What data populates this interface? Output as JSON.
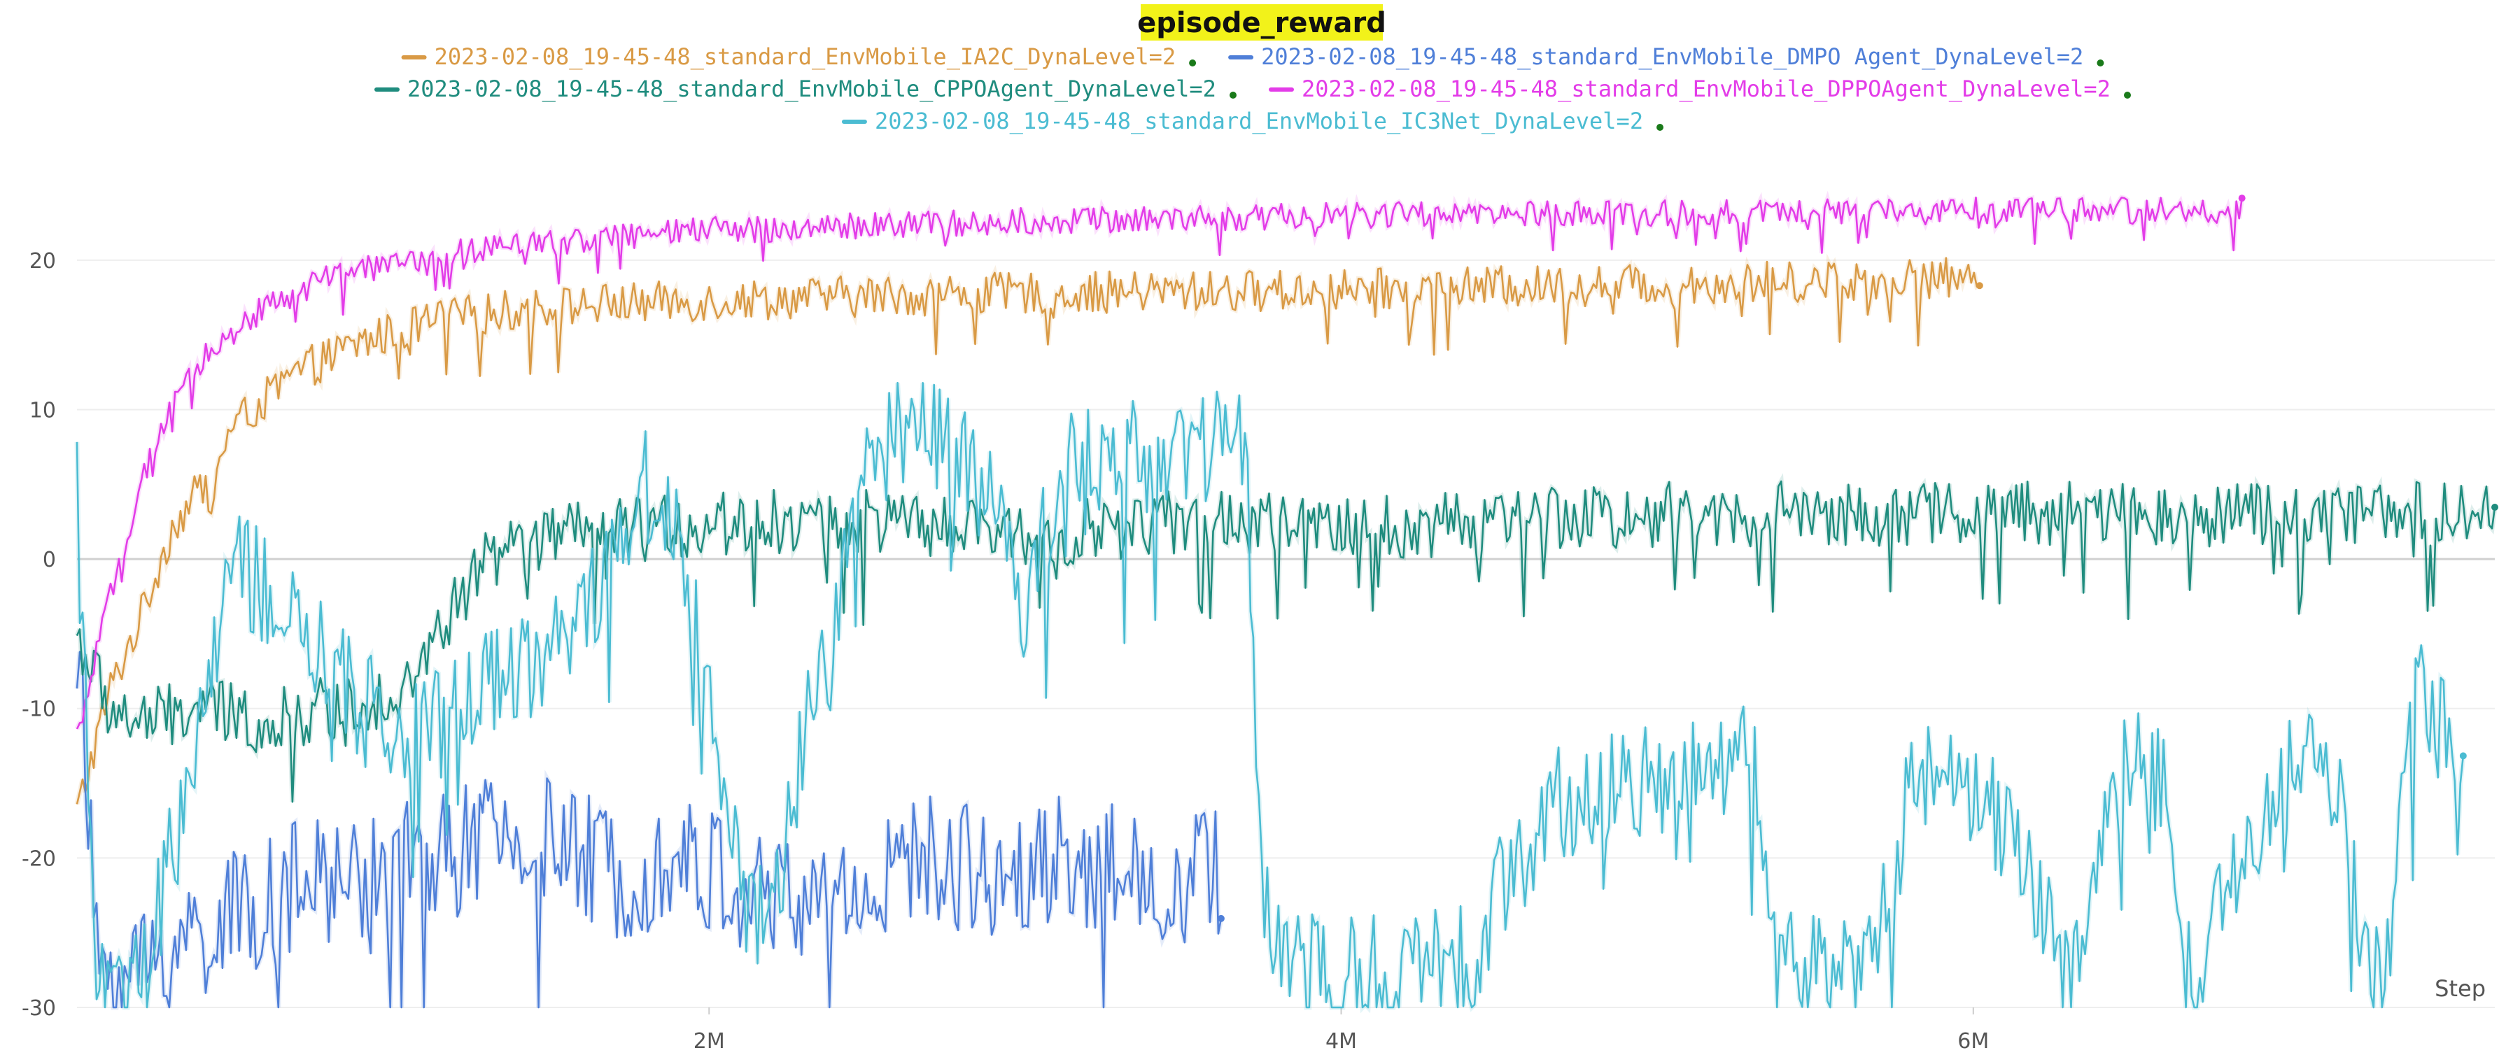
{
  "chart_data": {
    "type": "line",
    "title": "episode_reward",
    "xlabel": "Step",
    "ylabel": "",
    "xlim": [
      0,
      7650000
    ],
    "ylim": [
      -30,
      25
    ],
    "x_ticks": [
      {
        "value": 2000000,
        "label": "2M"
      },
      {
        "value": 4000000,
        "label": "4M"
      },
      {
        "value": 6000000,
        "label": "6M"
      }
    ],
    "y_ticks": [
      {
        "value": 20,
        "label": "20"
      },
      {
        "value": 10,
        "label": "10"
      },
      {
        "value": 0,
        "label": "0"
      },
      {
        "value": -10,
        "label": "-10"
      },
      {
        "value": -20,
        "label": "-20"
      },
      {
        "value": -30,
        "label": "-30"
      }
    ],
    "grid": true,
    "legend_position": "top",
    "series": [
      {
        "name": "2023-02-08_19-45-48_standard_EnvMobile_IA2C_DynaLevel=2",
        "color": "#d99a45",
        "noise": 1.4,
        "x": [
          0,
          100000,
          200000,
          300000,
          400000,
          500000,
          700000,
          900000,
          1100000,
          1300000,
          1600000,
          2000000,
          2500000,
          3000000,
          3500000,
          4000000,
          4500000,
          5000000,
          5500000,
          6000000,
          6020000
        ],
        "y": [
          -17,
          -9,
          -4,
          2,
          5,
          9,
          12.5,
          14.5,
          15.8,
          16.5,
          17,
          17.3,
          17.6,
          17.8,
          17.9,
          18,
          18.2,
          18.4,
          18.6,
          18.8,
          18.6
        ]
      },
      {
        "name": "2023-02-08_19-45-48_standard_EnvMobile_DMPO Agent_DynaLevel=2",
        "color": "#4f7fd8",
        "noise": 4.5,
        "x": [
          0,
          60000,
          150000,
          300000,
          500000,
          700000,
          900000,
          1100000,
          1300000,
          1500000,
          1700000,
          1900000,
          2100000,
          2300000,
          2500000,
          2700000,
          2900000,
          3100000,
          3300000,
          3500000,
          3600000,
          3620000
        ],
        "y": [
          -5,
          -26,
          -28,
          -26,
          -24,
          -22,
          -21,
          -20,
          -19,
          -19,
          -21,
          -20,
          -22,
          -23,
          -22,
          -20,
          -21,
          -20,
          -21,
          -22,
          -20,
          -22
        ]
      },
      {
        "name": "2023-02-08_19-45-48_standard_EnvMobile_CPPOAgent_DynaLevel=2",
        "color": "#1f8c7e",
        "noise": 2.2,
        "x": [
          0,
          100000,
          200000,
          400000,
          600000,
          800000,
          1000000,
          1100000,
          1200000,
          1300000,
          1500000,
          1800000,
          2100000,
          2500000,
          3000000,
          3500000,
          4000000,
          4500000,
          5000000,
          5500000,
          6000000,
          6500000,
          7000000,
          7500000,
          7650000
        ],
        "y": [
          -5,
          -10,
          -11,
          -10,
          -11,
          -10,
          -9,
          -7,
          -3,
          0,
          1.5,
          2,
          2.5,
          2.5,
          1.5,
          2.5,
          2,
          2.5,
          3,
          3,
          3,
          3,
          3,
          3,
          3
        ]
      },
      {
        "name": "2023-02-08_19-45-48_standard_EnvMobile_DPPOAgent_DynaLevel=2",
        "color": "#e33ce8",
        "noise": 0.9,
        "x": [
          0,
          100000,
          200000,
          300000,
          400000,
          600000,
          800000,
          1000000,
          1300000,
          1600000,
          2000000,
          2500000,
          3000000,
          3500000,
          4000000,
          5000000,
          6000000,
          6500000,
          6800000,
          6850000
        ],
        "y": [
          -12,
          -3,
          5,
          10,
          13.5,
          17,
          18.8,
          19.8,
          20.8,
          21.4,
          22,
          22.3,
          22.6,
          22.8,
          23,
          23.1,
          23.3,
          23.3,
          23.3,
          23.3
        ]
      },
      {
        "name": "2023-02-08_19-45-48_standard_EnvMobile_IC3Net_DynaLevel=2",
        "color": "#4bbcd2",
        "noise": 4,
        "x": [
          0,
          50000,
          100000,
          200000,
          350000,
          500000,
          700000,
          900000,
          1100000,
          1300000,
          1500000,
          1700000,
          1800000,
          1900000,
          2000000,
          2100000,
          2200000,
          2300000,
          2400000,
          2500000,
          2600000,
          2800000,
          2900000,
          3000000,
          3100000,
          3200000,
          3400000,
          3600000,
          3700000,
          3750000,
          3800000,
          4000000,
          4200000,
          4400000,
          4500000,
          4700000,
          5000000,
          5300000,
          5400000,
          5600000,
          5700000,
          5800000,
          6000000,
          6200000,
          6300000,
          6500000,
          6600000,
          6700000,
          7000000,
          7150000,
          7250000,
          7300000,
          7400000,
          7500000,
          7550000
        ],
        "y": [
          10,
          -25,
          -29,
          -29,
          -15,
          0,
          -5,
          -10,
          -12,
          -8,
          -6,
          0,
          5,
          3,
          -10,
          -22,
          -25,
          -12,
          -5,
          7,
          8,
          8,
          3,
          -3,
          5,
          7,
          7,
          8,
          7,
          -23,
          -27,
          -28,
          -27.5,
          -27,
          -22,
          -16,
          -15,
          -13,
          -27,
          -28,
          -25,
          -14,
          -15,
          -22,
          -28,
          -13,
          -15,
          -28,
          -14,
          -14,
          -28,
          -28,
          -8,
          -12,
          -12
        ]
      }
    ]
  }
}
